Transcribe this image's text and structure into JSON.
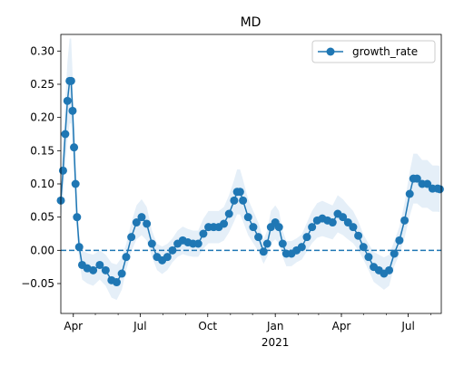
{
  "chart_data": {
    "type": "line",
    "title": "MD",
    "xlabel": "",
    "ylabel": "",
    "xlim": [
      "2020-03-15",
      "2021-08-15"
    ],
    "ylim": [
      -0.095,
      0.325
    ],
    "x_ticks": [
      {
        "date": "2020-04-01",
        "label": "Apr"
      },
      {
        "date": "2020-07-01",
        "label": "Jul"
      },
      {
        "date": "2020-10-01",
        "label": "Oct"
      },
      {
        "date": "2021-01-01",
        "label": "Jan"
      },
      {
        "date": "2021-04-01",
        "label": "Apr"
      },
      {
        "date": "2021-07-01",
        "label": "Jul"
      }
    ],
    "x_secondary_label": "2021",
    "y_ticks": [
      -0.05,
      0.0,
      0.05,
      0.1,
      0.15,
      0.2,
      0.25,
      0.3
    ],
    "y_tick_labels": [
      "−0.05",
      "0.00",
      "0.05",
      "0.10",
      "0.15",
      "0.20",
      "0.25",
      "0.30"
    ],
    "reference_line": {
      "y": 0.0,
      "style": "dashed"
    },
    "legend": {
      "position": "top-right",
      "entries": [
        "growth_rate"
      ]
    },
    "grid": false,
    "series": [
      {
        "name": "growth_rate",
        "color": "#1f77b4",
        "band_color": "#c6dbef",
        "marker": "circle",
        "points": [
          {
            "x": "2020-03-15",
            "y": 0.075
          },
          {
            "x": "2020-03-18",
            "y": 0.12
          },
          {
            "x": "2020-03-21",
            "y": 0.175
          },
          {
            "x": "2020-03-24",
            "y": 0.225
          },
          {
            "x": "2020-03-27",
            "y": 0.255
          },
          {
            "x": "2020-03-29",
            "y": 0.255
          },
          {
            "x": "2020-03-31",
            "y": 0.21
          },
          {
            "x": "2020-04-02",
            "y": 0.155
          },
          {
            "x": "2020-04-04",
            "y": 0.1
          },
          {
            "x": "2020-04-06",
            "y": 0.05
          },
          {
            "x": "2020-04-09",
            "y": 0.005
          },
          {
            "x": "2020-04-13",
            "y": -0.022
          },
          {
            "x": "2020-04-20",
            "y": -0.027
          },
          {
            "x": "2020-04-28",
            "y": -0.03
          },
          {
            "x": "2020-05-07",
            "y": -0.022
          },
          {
            "x": "2020-05-15",
            "y": -0.03
          },
          {
            "x": "2020-05-23",
            "y": -0.045
          },
          {
            "x": "2020-05-30",
            "y": -0.048
          },
          {
            "x": "2020-06-06",
            "y": -0.035
          },
          {
            "x": "2020-06-12",
            "y": -0.01
          },
          {
            "x": "2020-06-19",
            "y": 0.02
          },
          {
            "x": "2020-06-26",
            "y": 0.042
          },
          {
            "x": "2020-07-03",
            "y": 0.05
          },
          {
            "x": "2020-07-10",
            "y": 0.04
          },
          {
            "x": "2020-07-17",
            "y": 0.01
          },
          {
            "x": "2020-07-24",
            "y": -0.01
          },
          {
            "x": "2020-07-31",
            "y": -0.015
          },
          {
            "x": "2020-08-07",
            "y": -0.01
          },
          {
            "x": "2020-08-14",
            "y": 0.0
          },
          {
            "x": "2020-08-21",
            "y": 0.01
          },
          {
            "x": "2020-08-28",
            "y": 0.015
          },
          {
            "x": "2020-09-04",
            "y": 0.012
          },
          {
            "x": "2020-09-11",
            "y": 0.01
          },
          {
            "x": "2020-09-18",
            "y": 0.01
          },
          {
            "x": "2020-09-25",
            "y": 0.025
          },
          {
            "x": "2020-10-02",
            "y": 0.035
          },
          {
            "x": "2020-10-09",
            "y": 0.035
          },
          {
            "x": "2020-10-16",
            "y": 0.035
          },
          {
            "x": "2020-10-23",
            "y": 0.04
          },
          {
            "x": "2020-10-30",
            "y": 0.055
          },
          {
            "x": "2020-11-06",
            "y": 0.075
          },
          {
            "x": "2020-11-10",
            "y": 0.088
          },
          {
            "x": "2020-11-14",
            "y": 0.088
          },
          {
            "x": "2020-11-18",
            "y": 0.075
          },
          {
            "x": "2020-11-25",
            "y": 0.05
          },
          {
            "x": "2020-12-02",
            "y": 0.035
          },
          {
            "x": "2020-12-09",
            "y": 0.02
          },
          {
            "x": "2020-12-16",
            "y": -0.002
          },
          {
            "x": "2020-12-21",
            "y": 0.01
          },
          {
            "x": "2020-12-26",
            "y": 0.035
          },
          {
            "x": "2021-01-01",
            "y": 0.042
          },
          {
            "x": "2021-01-06",
            "y": 0.035
          },
          {
            "x": "2021-01-11",
            "y": 0.01
          },
          {
            "x": "2021-01-16",
            "y": -0.005
          },
          {
            "x": "2021-01-23",
            "y": -0.005
          },
          {
            "x": "2021-01-30",
            "y": 0.0
          },
          {
            "x": "2021-02-06",
            "y": 0.005
          },
          {
            "x": "2021-02-13",
            "y": 0.02
          },
          {
            "x": "2021-02-20",
            "y": 0.035
          },
          {
            "x": "2021-02-27",
            "y": 0.045
          },
          {
            "x": "2021-03-06",
            "y": 0.048
          },
          {
            "x": "2021-03-13",
            "y": 0.045
          },
          {
            "x": "2021-03-20",
            "y": 0.042
          },
          {
            "x": "2021-03-27",
            "y": 0.055
          },
          {
            "x": "2021-04-03",
            "y": 0.05
          },
          {
            "x": "2021-04-10",
            "y": 0.042
          },
          {
            "x": "2021-04-17",
            "y": 0.035
          },
          {
            "x": "2021-04-24",
            "y": 0.022
          },
          {
            "x": "2021-05-01",
            "y": 0.005
          },
          {
            "x": "2021-05-08",
            "y": -0.01
          },
          {
            "x": "2021-05-15",
            "y": -0.025
          },
          {
            "x": "2021-05-22",
            "y": -0.03
          },
          {
            "x": "2021-05-29",
            "y": -0.035
          },
          {
            "x": "2021-06-05",
            "y": -0.03
          },
          {
            "x": "2021-06-12",
            "y": -0.005
          },
          {
            "x": "2021-06-19",
            "y": 0.015
          },
          {
            "x": "2021-06-26",
            "y": 0.045
          },
          {
            "x": "2021-07-03",
            "y": 0.085
          },
          {
            "x": "2021-07-08",
            "y": 0.108
          },
          {
            "x": "2021-07-13",
            "y": 0.108
          },
          {
            "x": "2021-07-20",
            "y": 0.1
          },
          {
            "x": "2021-07-27",
            "y": 0.1
          },
          {
            "x": "2021-08-03",
            "y": 0.093
          },
          {
            "x": "2021-08-10",
            "y": 0.093
          },
          {
            "x": "2021-08-13",
            "y": 0.092
          }
        ]
      }
    ]
  }
}
